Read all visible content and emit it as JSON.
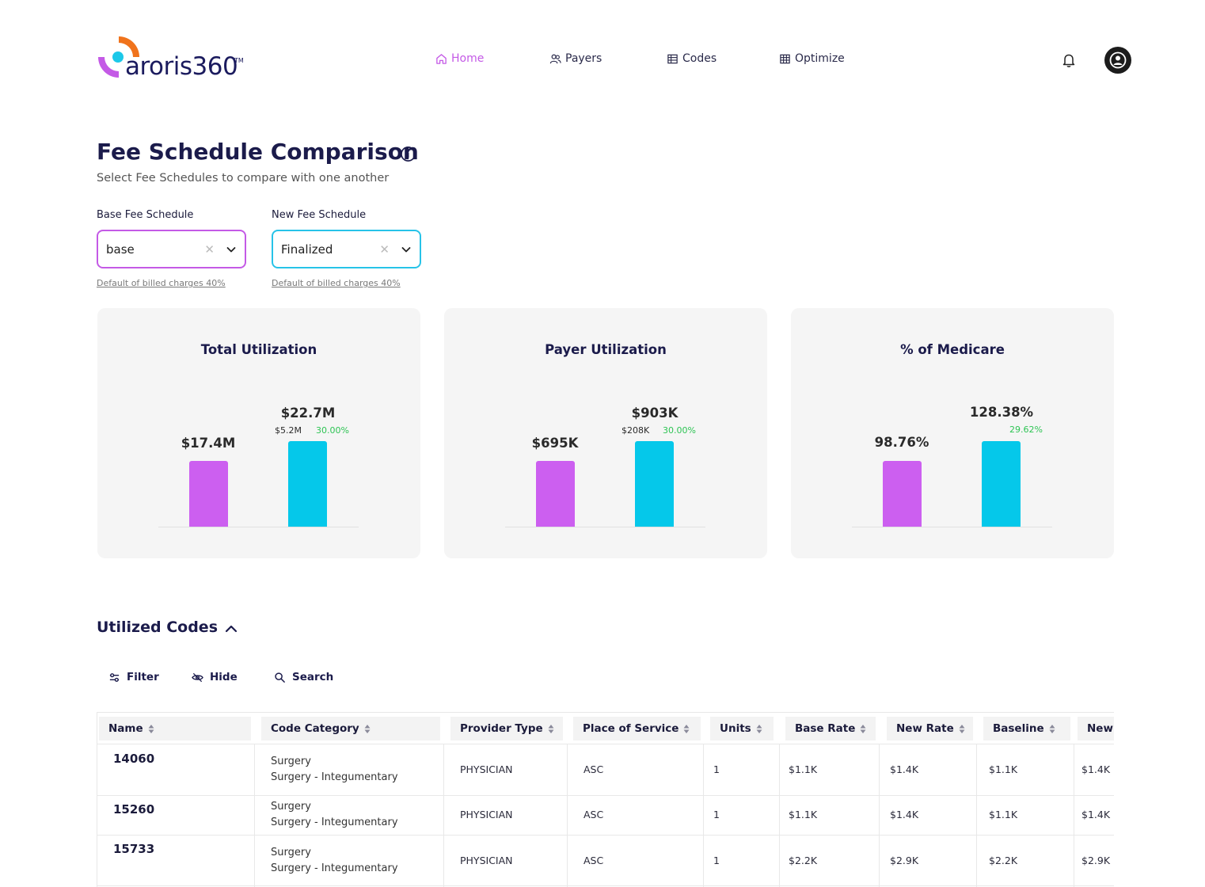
{
  "app": {
    "logo_text": "aroris360",
    "logo_tm": "TM",
    "brand_colors": {
      "orange": "#f0731c",
      "purple": "#c45ae6",
      "cyan": "#1cc8e9",
      "navy": "#1b1b5e"
    }
  },
  "nav": {
    "home": "Home",
    "payers": "Payers",
    "codes": "Codes",
    "optimize": "Optimize",
    "active": "Home"
  },
  "header_icons": [
    "bell-icon",
    "user-avatar-icon"
  ],
  "page": {
    "title": "Fee Schedule Comparison",
    "subtitle": "Select Fee Schedules to compare with one another"
  },
  "selectors": {
    "base": {
      "label": "Base Fee Schedule",
      "value": "base",
      "note": "Default of billed charges 40%"
    },
    "new": {
      "label": "New Fee Schedule",
      "value": "Finalized",
      "note": "Default of billed charges 40%"
    }
  },
  "cards": [
    {
      "title": "Total Utilization",
      "base_label": "$17.4M",
      "new_label": "$22.7M",
      "diff_abs": "$5.2M",
      "diff_pct": "30.00%",
      "base_value": 17.4,
      "new_value": 22.7
    },
    {
      "title": "Payer Utilization",
      "base_label": "$695K",
      "new_label": "$903K",
      "diff_abs": "$208K",
      "diff_pct": "30.00%",
      "base_value": 695,
      "new_value": 903
    },
    {
      "title": "% of Medicare",
      "base_label": "98.76%",
      "new_label": "128.38%",
      "diff_abs": "",
      "diff_pct": "29.62%",
      "base_value": 98.76,
      "new_value": 128.38
    }
  ],
  "bar_colors": {
    "base": "#cc5ff0",
    "new": "#05c8ea",
    "positive": "#2ec454"
  },
  "codes_section": {
    "title": "Utilized Codes",
    "tools": {
      "filter": "Filter",
      "hide": "Hide",
      "search": "Search"
    },
    "columns": [
      "Name",
      "Code Category",
      "Provider Type",
      "Place of Service",
      "Units",
      "Base Rate",
      "New Rate",
      "Baseline",
      "New"
    ],
    "rows": [
      {
        "name": "14060",
        "cat1": "Surgery",
        "cat2": "Surgery - Integumentary",
        "provider": "PHYSICIAN",
        "pos": "ASC",
        "units": "1",
        "base_rate": "$1.1K",
        "new_rate": "$1.4K",
        "baseline": "$1.1K",
        "new": "$1.4K"
      },
      {
        "name": "15260",
        "cat1": "Surgery",
        "cat2": "Surgery - Integumentary",
        "provider": "PHYSICIAN",
        "pos": "ASC",
        "units": "1",
        "base_rate": "$1.1K",
        "new_rate": "$1.4K",
        "baseline": "$1.1K",
        "new": "$1.4K"
      },
      {
        "name": "15733",
        "cat1": "Surgery",
        "cat2": "Surgery - Integumentary",
        "provider": "PHYSICIAN",
        "pos": "ASC",
        "units": "1",
        "base_rate": "$2.2K",
        "new_rate": "$2.9K",
        "baseline": "$2.2K",
        "new": "$2.9K"
      }
    ]
  }
}
